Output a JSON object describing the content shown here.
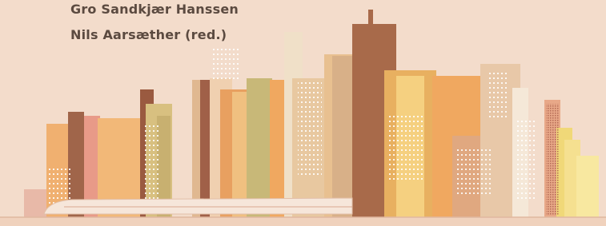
{
  "authors": [
    "Gro Sandkjær Hanssen",
    "Nils Aarsæther (red.)"
  ]
}
